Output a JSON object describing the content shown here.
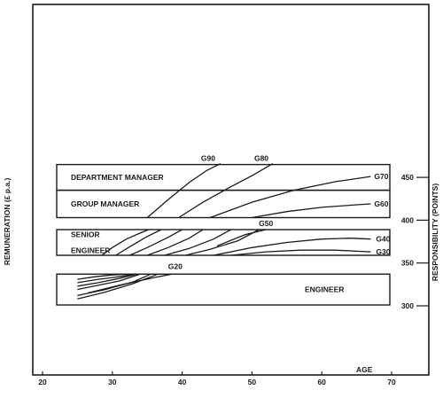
{
  "chart_data": {
    "type": "line",
    "title": "",
    "xlabel": "AGE",
    "ylabel_left": "REMUNERATION (£ p.a.)",
    "ylabel_right": "RESPONSIBILITY (POINTS)",
    "xlim": [
      20,
      70
    ],
    "ylim": [
      290,
      475
    ],
    "x_ticks": [
      20,
      30,
      40,
      50,
      60,
      70
    ],
    "y_ticks": [
      300,
      350,
      400,
      450
    ],
    "grid": false,
    "bands": [
      {
        "label": "DEPARTMENT MANAGER",
        "y_range": [
          435,
          465
        ]
      },
      {
        "label": "GROUP MANAGER",
        "y_range": [
          403,
          435
        ]
      },
      {
        "label": "SENIOR ENGINEER",
        "label_lines": [
          "SENIOR",
          "ENGINEER"
        ],
        "y_range": [
          359,
          389
        ]
      },
      {
        "label": "ENGINEER",
        "y_range": [
          301,
          337
        ]
      }
    ],
    "series": [
      {
        "name": "G90",
        "x": [
          35,
          38,
          41,
          43.5,
          45.5
        ],
        "y": [
          403,
          424,
          444,
          458,
          466
        ]
      },
      {
        "name": "G80",
        "x": [
          39.5,
          43,
          46.5,
          50,
          53
        ],
        "y": [
          403,
          421,
          437,
          452,
          466
        ]
      },
      {
        "name": "G70",
        "x": [
          44,
          50,
          56,
          62,
          67
        ],
        "y": [
          403,
          421,
          435,
          445,
          451
        ]
      },
      {
        "name": "G60",
        "x": [
          50,
          55,
          60,
          65,
          67
        ],
        "y": [
          403,
          410,
          415,
          418,
          419
        ]
      },
      {
        "name": "G50",
        "x": [
          45,
          49,
          52
        ],
        "y": [
          370,
          383,
          389
        ]
      },
      {
        "name": "G40",
        "x": [
          44.5,
          50,
          55,
          60,
          64,
          67
        ],
        "y": [
          359,
          368,
          374,
          378,
          379,
          378
        ]
      },
      {
        "name": "G30",
        "x": [
          47,
          52,
          57,
          62,
          67
        ],
        "y": [
          359,
          363,
          365,
          365,
          363
        ]
      },
      {
        "name": "G20",
        "x": [
          26.5,
          31,
          36,
          38.5
        ],
        "y": [
          315,
          324,
          333,
          337
        ]
      }
    ],
    "unlabeled_series": [
      {
        "x": [
          28.5,
          30,
          32,
          34,
          35.2
        ],
        "y": [
          359,
          368,
          378,
          385,
          389
        ]
      },
      {
        "x": [
          30.5,
          32.5,
          35,
          37
        ],
        "y": [
          359,
          369,
          381,
          389
        ]
      },
      {
        "x": [
          32.5,
          35,
          38,
          40
        ],
        "y": [
          359,
          368,
          380,
          389
        ]
      },
      {
        "x": [
          35,
          38,
          41,
          43
        ],
        "y": [
          359,
          368,
          379,
          389
        ]
      },
      {
        "x": [
          37.5,
          41,
          44.5,
          47
        ],
        "y": [
          359,
          367,
          378,
          389
        ]
      },
      {
        "x": [
          40.5,
          44,
          48,
          51
        ],
        "y": [
          359,
          366,
          376,
          389
        ]
      },
      {
        "x": [
          25,
          27.5,
          30,
          32
        ],
        "y": [
          331,
          334,
          336,
          337
        ]
      },
      {
        "x": [
          25,
          28,
          31,
          33
        ],
        "y": [
          327,
          331,
          334,
          337
        ]
      },
      {
        "x": [
          25,
          28,
          31,
          33.5
        ],
        "y": [
          323,
          327,
          332,
          337
        ]
      },
      {
        "x": [
          25,
          28,
          31,
          34
        ],
        "y": [
          319,
          324,
          329,
          337
        ]
      },
      {
        "x": [
          25,
          29,
          33,
          35.5
        ],
        "y": [
          312,
          319,
          328,
          337
        ]
      },
      {
        "x": [
          25,
          29,
          33,
          36.5
        ],
        "y": [
          308,
          316,
          326,
          337
        ]
      }
    ]
  }
}
